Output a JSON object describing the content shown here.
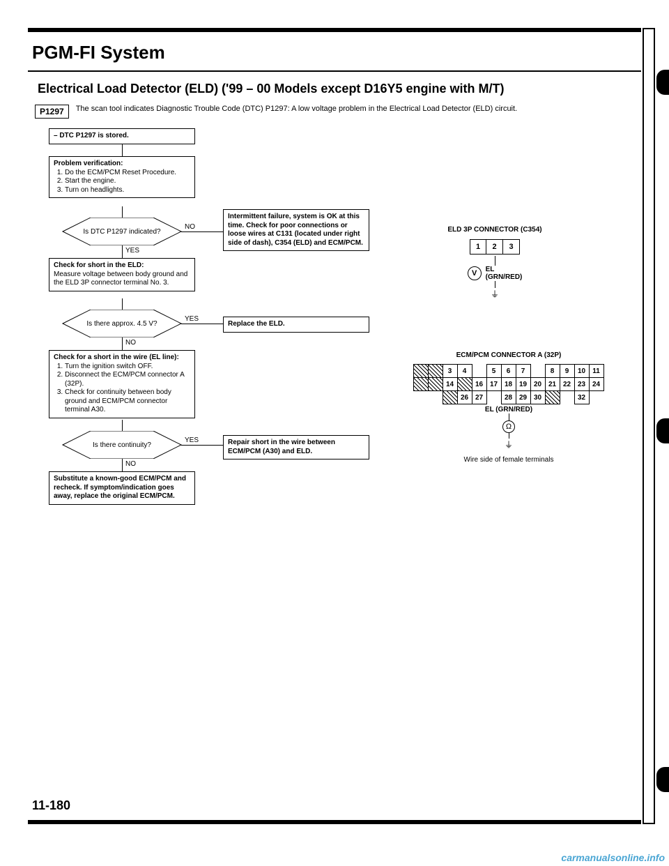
{
  "header": {
    "system_title": "PGM-FI System"
  },
  "section": {
    "title": "Electrical Load Detector (ELD) ('99 – 00 Models except D16Y5 engine with M/T)",
    "dtc_code": "P1297",
    "dtc_text": "The scan tool indicates Diagnostic Trouble Code (DTC) P1297: A low voltage problem in the Electrical Load Detector (ELD) circuit."
  },
  "flow": {
    "start": "– DTC P1297 is stored.",
    "step1_title": "Problem verification:",
    "step1_items": [
      "Do the ECM/PCM Reset Procedure.",
      "Start the engine.",
      "Turn on headlights."
    ],
    "dec1": "Is DTC P1297 indicated?",
    "dec1_no": "NO",
    "dec1_yes": "YES",
    "intermittent": "Intermittent failure, system is OK at this time. Check for poor connections or loose wires at C131 (located under right side of dash), C354 (ELD) and ECM/PCM.",
    "step2_title": "Check for short in the ELD:",
    "step2_text": "Measure voltage between body ground and the ELD 3P connector terminal No. 3.",
    "dec2": "Is there approx. 4.5 V?",
    "dec2_yes": "YES",
    "dec2_no": "NO",
    "replace_eld": "Replace the ELD.",
    "step3_title": "Check for a short in the wire (EL line):",
    "step3_items": [
      "Turn the ignition switch OFF.",
      "Disconnect the ECM/PCM connector A (32P).",
      "Check for continuity between body ground and ECM/PCM connector terminal A30."
    ],
    "dec3": "Is there continuity?",
    "dec3_yes": "YES",
    "dec3_no": "NO",
    "repair_short": "Repair short in the wire between ECM/PCM (A30) and ELD.",
    "substitute": "Substitute a known-good ECM/PCM and recheck. If symptom/indication goes away, replace the original ECM/PCM."
  },
  "connectors": {
    "eld_title": "ELD 3P CONNECTOR (C354)",
    "eld_pins": [
      "1",
      "2",
      "3"
    ],
    "eld_signal": "EL",
    "eld_wire": "(GRN/RED)",
    "ecm_title": "ECM/PCM CONNECTOR A (32P)",
    "ecm_rows": [
      [
        "/",
        "/",
        "3",
        "4",
        "",
        "5",
        "6",
        "7",
        "",
        "8",
        "9",
        "10",
        "11"
      ],
      [
        "/",
        "/",
        "14",
        "/",
        "16",
        "17",
        "18",
        "19",
        "20",
        "21",
        "22",
        "23",
        "24"
      ],
      [
        "",
        "",
        "/",
        "26",
        "27",
        "",
        "28",
        "29",
        "30",
        "/",
        "",
        "32",
        ""
      ]
    ],
    "ecm_signal": "EL (GRN/RED)",
    "wire_side": "Wire side of female terminals"
  },
  "page_number": "11-180",
  "watermark": "carmanualsonline.info"
}
